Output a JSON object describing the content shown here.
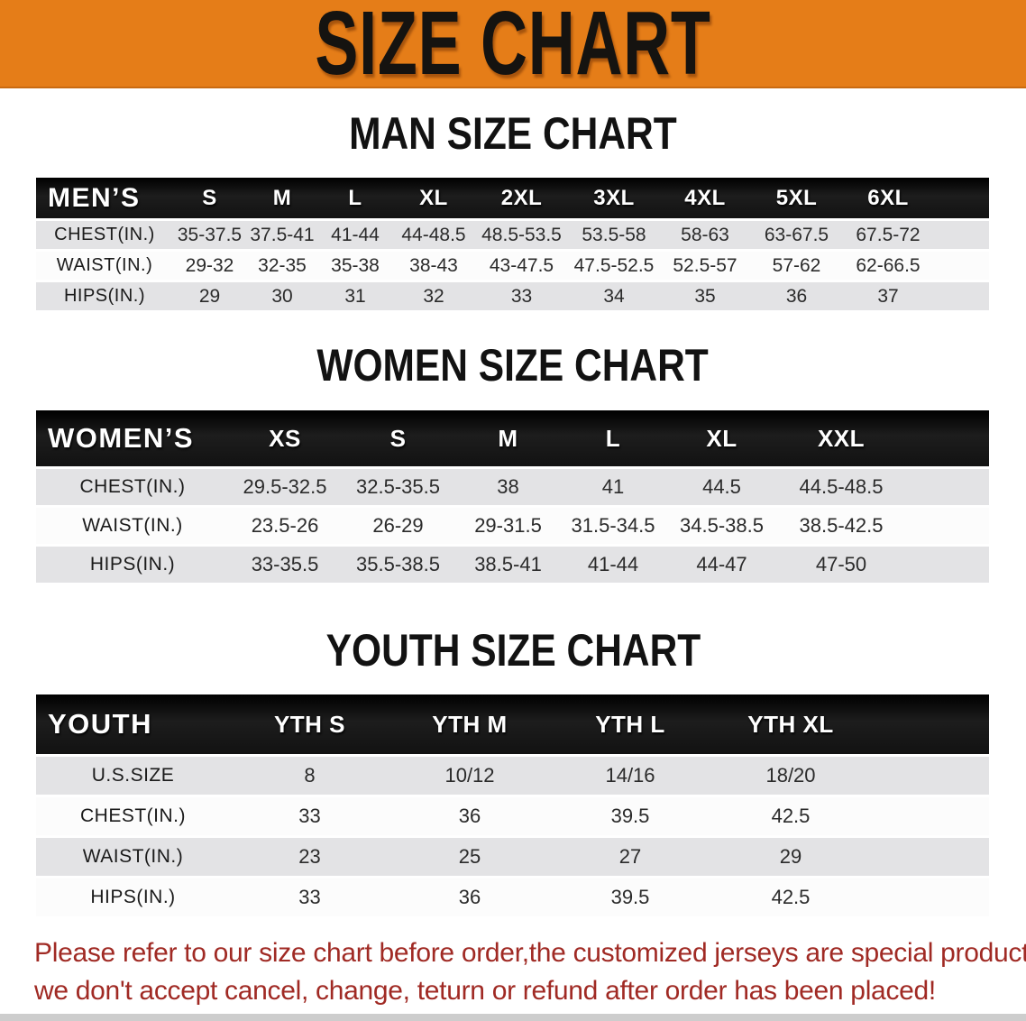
{
  "banner": {
    "title": "SIZE CHART"
  },
  "colors": {
    "banner_bg": "#e57d18",
    "table_header_bg": "#141414",
    "row_gray": "#e3e3e5",
    "note_red": "#a02a24"
  },
  "sections": [
    {
      "heading": "MAN SIZE CHART",
      "group_label": "MEN’S",
      "columns": [
        "S",
        "M",
        "L",
        "XL",
        "2XL",
        "3XL",
        "4XL",
        "5XL",
        "6XL"
      ],
      "rows": [
        {
          "label": "CHEST(IN.)",
          "values": [
            "35-37.5",
            "37.5-41",
            "41-44",
            "44-48.5",
            "48.5-53.5",
            "53.5-58",
            "58-63",
            "63-67.5",
            "67.5-72"
          ]
        },
        {
          "label": "WAIST(IN.)",
          "values": [
            "29-32",
            "32-35",
            "35-38",
            "38-43",
            "43-47.5",
            "47.5-52.5",
            "52.5-57",
            "57-62",
            "62-66.5"
          ]
        },
        {
          "label": "HIPS(IN.)",
          "values": [
            "29",
            "30",
            "31",
            "32",
            "33",
            "34",
            "35",
            "36",
            "37"
          ]
        }
      ]
    },
    {
      "heading": "WOMEN SIZE CHART",
      "group_label": "WOMEN’S",
      "columns": [
        "XS",
        "S",
        "M",
        "L",
        "XL",
        "XXL"
      ],
      "rows": [
        {
          "label": "CHEST(IN.)",
          "values": [
            "29.5-32.5",
            "32.5-35.5",
            "38",
            "41",
            "44.5",
            "44.5-48.5"
          ]
        },
        {
          "label": "WAIST(IN.)",
          "values": [
            "23.5-26",
            "26-29",
            "29-31.5",
            "31.5-34.5",
            "34.5-38.5",
            "38.5-42.5"
          ]
        },
        {
          "label": "HIPS(IN.)",
          "values": [
            "33-35.5",
            "35.5-38.5",
            "38.5-41",
            "41-44",
            "44-47",
            "47-50"
          ]
        }
      ]
    },
    {
      "heading": "YOUTH SIZE CHART",
      "group_label": "YOUTH",
      "columns": [
        "YTH S",
        "YTH M",
        "YTH L",
        "YTH XL"
      ],
      "rows": [
        {
          "label": "U.S.SIZE",
          "values": [
            "8",
            "10/12",
            "14/16",
            "18/20"
          ]
        },
        {
          "label": "CHEST(IN.)",
          "values": [
            "33",
            "36",
            "39.5",
            "42.5"
          ]
        },
        {
          "label": "WAIST(IN.)",
          "values": [
            "23",
            "25",
            "27",
            "29"
          ]
        },
        {
          "label": "HIPS(IN.)",
          "values": [
            "33",
            "36",
            "39.5",
            "42.5"
          ]
        }
      ]
    }
  ],
  "footer": {
    "line1": "Please refer to our size chart before order,the customized jerseys are special products,",
    "line2": "we don't accept cancel, change, teturn or refund after order has been placed!"
  }
}
